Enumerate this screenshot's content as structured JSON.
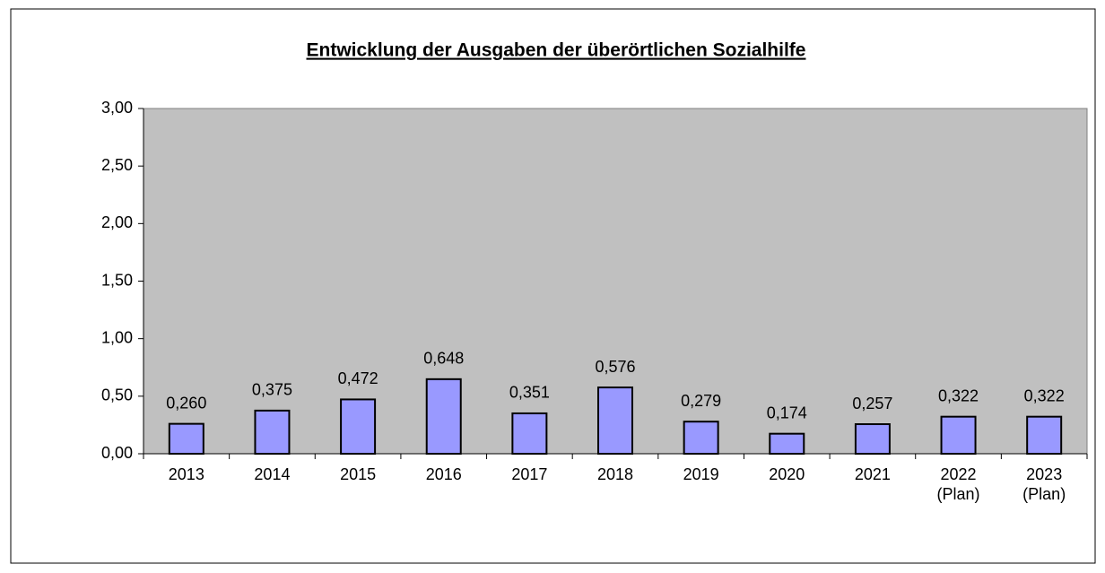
{
  "chart_data": {
    "type": "bar",
    "title": "Entwicklung der Ausgaben der überörtlichen Sozialhilfe",
    "categories": [
      "2013",
      "2014",
      "2015",
      "2016",
      "2017",
      "2018",
      "2019",
      "2020",
      "2021",
      "2022\n(Plan)",
      "2023\n(Plan)"
    ],
    "values": [
      0.26,
      0.375,
      0.472,
      0.648,
      0.351,
      0.576,
      0.279,
      0.174,
      0.257,
      0.322,
      0.322
    ],
    "value_labels": [
      "0,260",
      "0,375",
      "0,472",
      "0,648",
      "0,351",
      "0,576",
      "0,279",
      "0,174",
      "0,257",
      "0,322",
      "0,322"
    ],
    "color": "#9999ff",
    "ylim": [
      0,
      3
    ],
    "yticks": [
      {
        "value": 0,
        "label": "0,00"
      },
      {
        "value": 0.5,
        "label": "0,50"
      },
      {
        "value": 1,
        "label": "1,00"
      },
      {
        "value": 1.5,
        "label": "1,50"
      },
      {
        "value": 2,
        "label": "2,00"
      },
      {
        "value": 2.5,
        "label": "2,50"
      },
      {
        "value": 3,
        "label": "3,00"
      }
    ],
    "grid": false
  }
}
